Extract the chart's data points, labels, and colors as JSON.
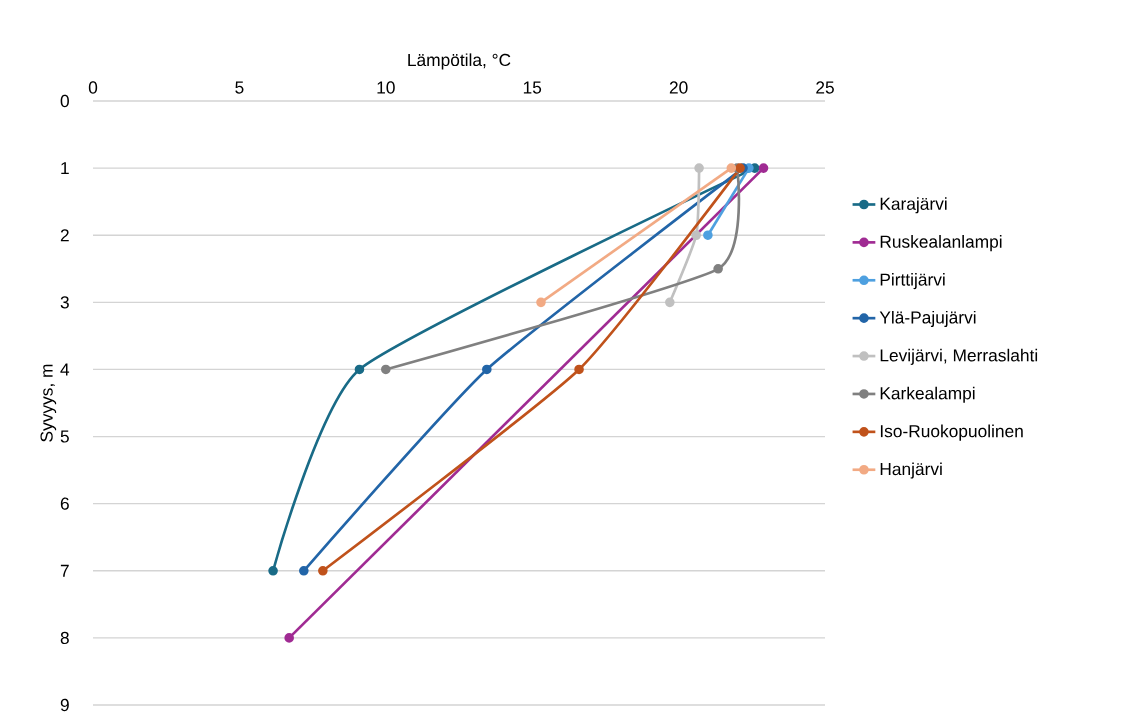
{
  "chart_data": {
    "type": "line",
    "xlabel": "Lämpötila, °C",
    "ylabel": "Syvyys, m",
    "xlim": [
      0,
      25
    ],
    "xticks": [
      0,
      5,
      10,
      15,
      20,
      25
    ],
    "ylim": [
      9,
      0
    ],
    "yticks": [
      0,
      1,
      2,
      3,
      4,
      5,
      6,
      7,
      8,
      9
    ],
    "grid": "y",
    "legend": "right",
    "marker": "circle",
    "line_style": "solid",
    "series": [
      {
        "name": "Karajärvi",
        "color": "#196b87",
        "x": [
          22.6,
          9.1,
          6.15
        ],
        "values": [
          1,
          4,
          7
        ]
      },
      {
        "name": "Ruskealanlampi",
        "color": "#a02b93",
        "x": [
          22.9,
          6.7
        ],
        "values": [
          1,
          8
        ]
      },
      {
        "name": "Pirttijärvi",
        "color": "#4ea0e0",
        "x": [
          22.4,
          21.0
        ],
        "values": [
          1,
          2
        ]
      },
      {
        "name": "Ylä-Pajujärvi",
        "color": "#2265a8",
        "x": [
          22.2,
          13.45,
          7.2
        ],
        "values": [
          1,
          4,
          7
        ]
      },
      {
        "name": "Levijärvi, Merraslahti",
        "color": "#c0c0c0",
        "x": [
          20.7,
          20.6,
          19.7
        ],
        "values": [
          1,
          2,
          3
        ]
      },
      {
        "name": "Karkealampi",
        "color": "#808080",
        "x": [
          22.0,
          21.35,
          10.0
        ],
        "values": [
          1,
          2.5,
          4
        ]
      },
      {
        "name": "Iso-Ruokopuolinen",
        "color": "#c0521b",
        "x": [
          22.1,
          16.6,
          7.85
        ],
        "values": [
          1,
          4,
          7
        ]
      },
      {
        "name": "Hanjärvi",
        "color": "#f2aa84",
        "x": [
          21.8,
          15.3
        ],
        "values": [
          1,
          3
        ]
      }
    ]
  }
}
